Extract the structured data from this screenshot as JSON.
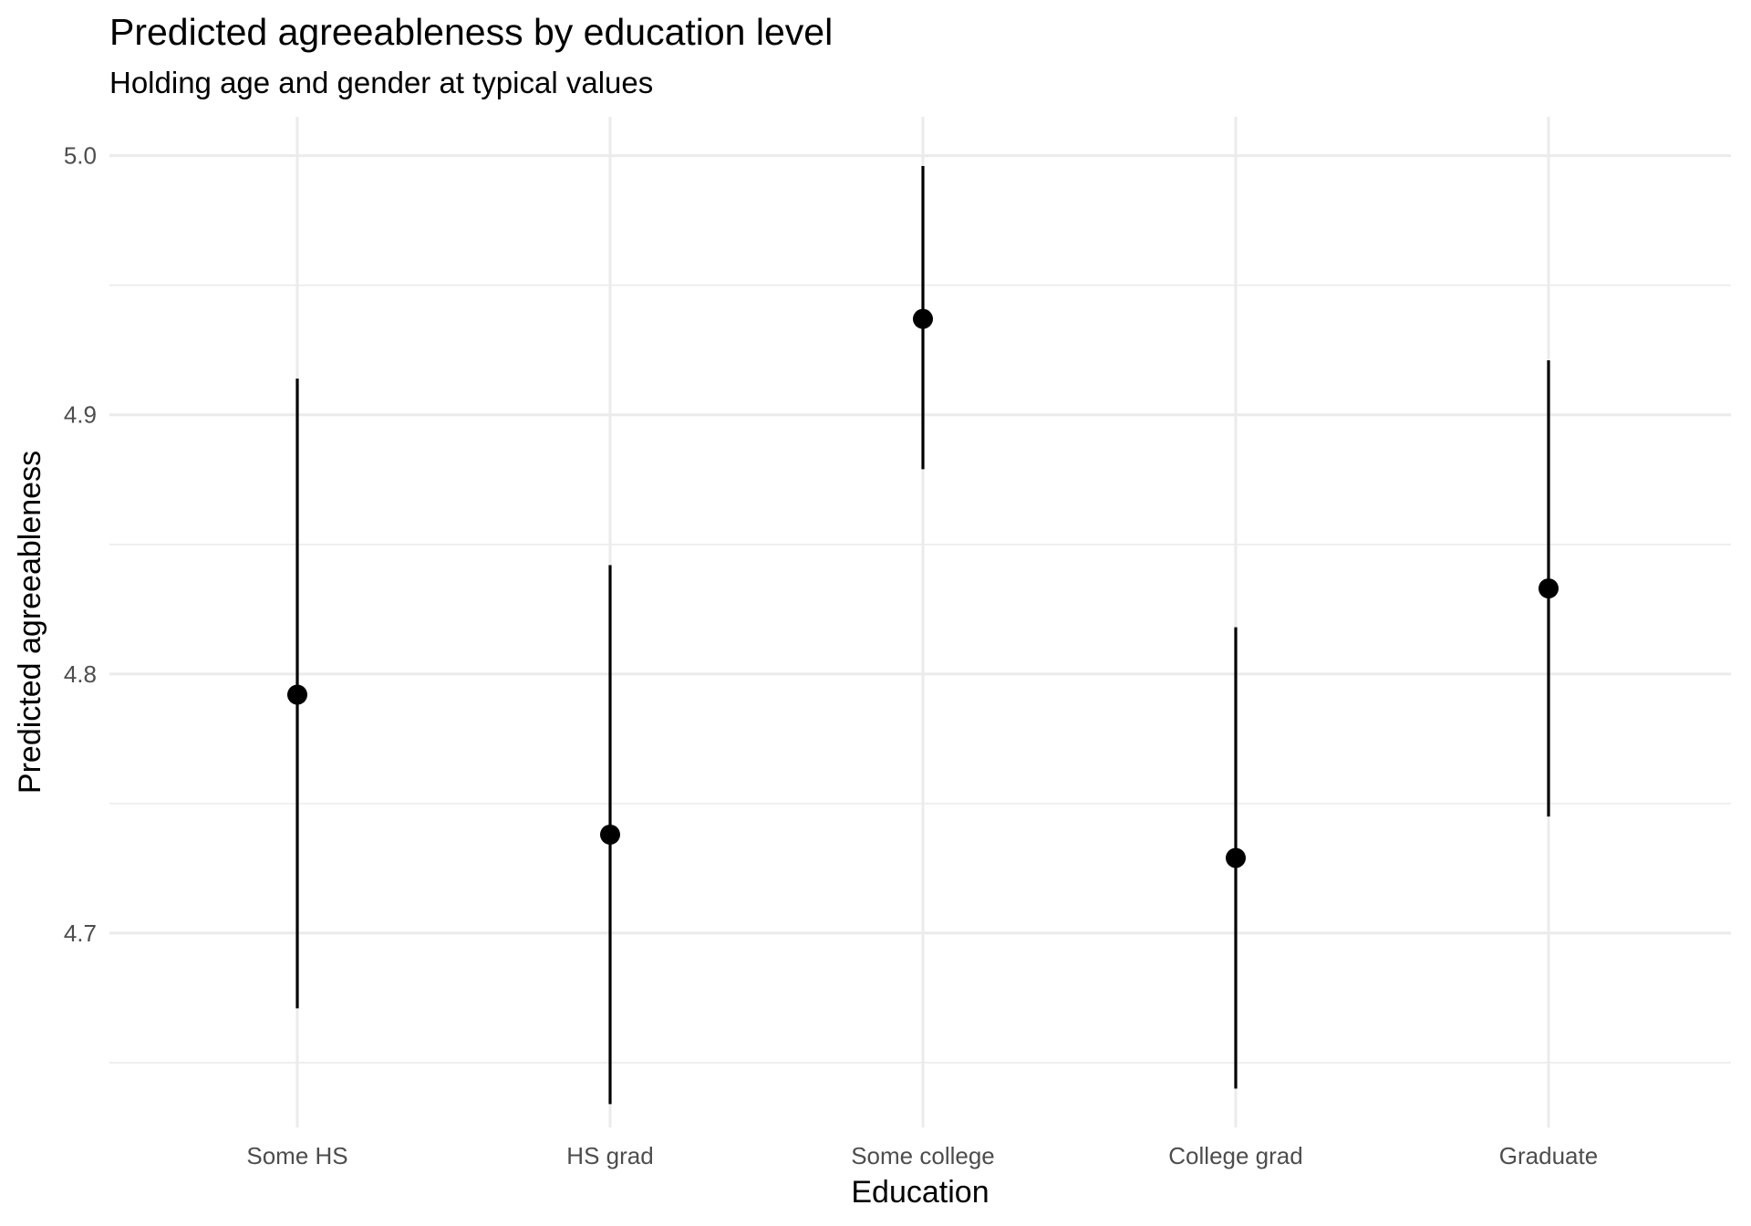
{
  "chart_data": {
    "type": "pointrange",
    "title": "Predicted agreeableness by education level",
    "subtitle": "Holding age and gender at typical values",
    "xlabel": "Education",
    "ylabel": "Predicted agreeableness",
    "categories": [
      "Some HS",
      "HS grad",
      "Some college",
      "College grad",
      "Graduate"
    ],
    "estimates": [
      4.792,
      4.738,
      4.937,
      4.729,
      4.833
    ],
    "lower": [
      4.671,
      4.634,
      4.879,
      4.64,
      4.745
    ],
    "upper": [
      4.914,
      4.842,
      4.996,
      4.818,
      4.921
    ],
    "ylim": [
      4.625,
      5.015
    ],
    "yticks": [
      "4.7",
      "4.8",
      "4.9",
      "5.0"
    ],
    "grid": true,
    "legend": "none",
    "colors": {
      "point": "#000000",
      "gridline": "#ebebeb",
      "tick_text": "#4d4d4d"
    }
  }
}
